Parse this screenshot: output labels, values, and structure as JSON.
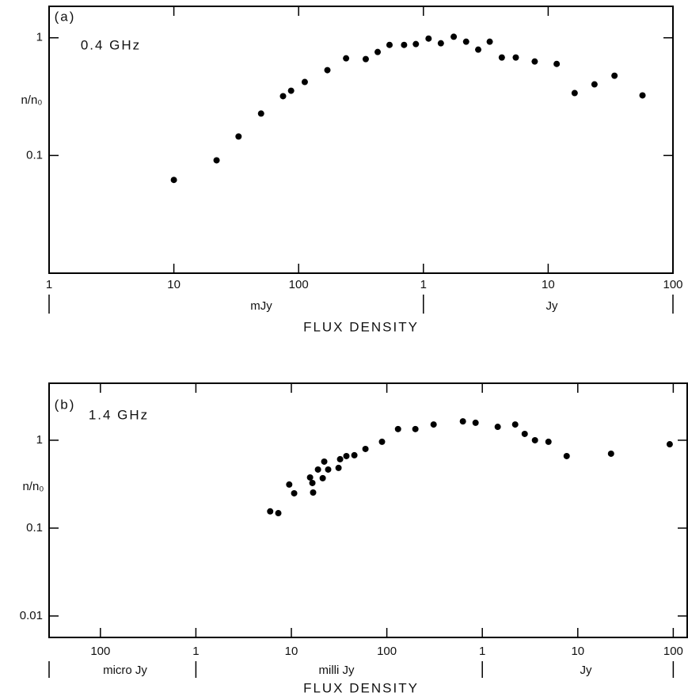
{
  "chart_data": [
    {
      "type": "scatter",
      "panel_label": "(a)",
      "annotation": "0.4 GHz",
      "x_label": "FLUX DENSITY",
      "y_label": "n/n₀",
      "unit_labels": [
        "mJy",
        "Jy"
      ],
      "xscale": "log",
      "yscale": "log",
      "color": "#000000",
      "xlim": [
        1,
        100000
      ],
      "ylim": [
        0.01,
        1.85
      ],
      "xticks": [
        1,
        10,
        100,
        {
          "value": 1000,
          "label": "1"
        },
        {
          "value": 10000,
          "label": "10"
        },
        {
          "value": 100000,
          "label": "100"
        }
      ],
      "yticks": [
        0.1,
        1
      ],
      "x": [
        10,
        22,
        33,
        50,
        75,
        87,
        112,
        170,
        240,
        345,
        430,
        535,
        700,
        870,
        1100,
        1380,
        1750,
        2200,
        2750,
        3400,
        4250,
        5500,
        7800,
        11700,
        16300,
        23500,
        34000,
        57000
      ],
      "values": [
        0.062,
        0.091,
        0.145,
        0.227,
        0.319,
        0.355,
        0.421,
        0.531,
        0.669,
        0.659,
        0.757,
        0.87,
        0.87,
        0.884,
        0.985,
        0.898,
        1.02,
        0.926,
        0.793,
        0.926,
        0.68,
        0.68,
        0.629,
        0.6,
        0.339,
        0.402,
        0.476,
        0.324
      ]
    },
    {
      "type": "scatter",
      "panel_label": "(b)",
      "annotation": "1.4 GHz",
      "x_label": "FLUX DENSITY",
      "y_label": "n/n₀",
      "unit_labels": [
        "micro Jy",
        "milli Jy",
        "Jy"
      ],
      "xscale": "log",
      "yscale": "log",
      "color": "#000000",
      "xlim": [
        0.029,
        140000
      ],
      "ylim": [
        0.0057,
        4.45
      ],
      "xticks": [
        {
          "value": 0.1,
          "label": "100"
        },
        1,
        10,
        100,
        {
          "value": 1000,
          "label": "1"
        },
        {
          "value": 10000,
          "label": "10"
        },
        {
          "value": 100000,
          "label": "100"
        }
      ],
      "yticks": [
        0.01,
        0.1,
        1
      ],
      "x": [
        6.0,
        7.3,
        9.5,
        10.7,
        15.7,
        16.9,
        16.6,
        19.0,
        21.3,
        22.1,
        24.3,
        31.2,
        32.4,
        37.7,
        45.7,
        59.7,
        89,
        131,
        199,
        309,
        626,
        850,
        1450,
        2210,
        2780,
        3560,
        4930,
        7650,
        22300,
        91800
      ],
      "values": [
        0.155,
        0.148,
        0.313,
        0.249,
        0.377,
        0.254,
        0.326,
        0.464,
        0.37,
        0.571,
        0.464,
        0.484,
        0.608,
        0.66,
        0.675,
        0.796,
        0.96,
        1.34,
        1.34,
        1.51,
        1.64,
        1.58,
        1.42,
        1.51,
        1.18,
        1.0,
        0.96,
        0.66,
        0.703,
        0.9
      ]
    }
  ]
}
